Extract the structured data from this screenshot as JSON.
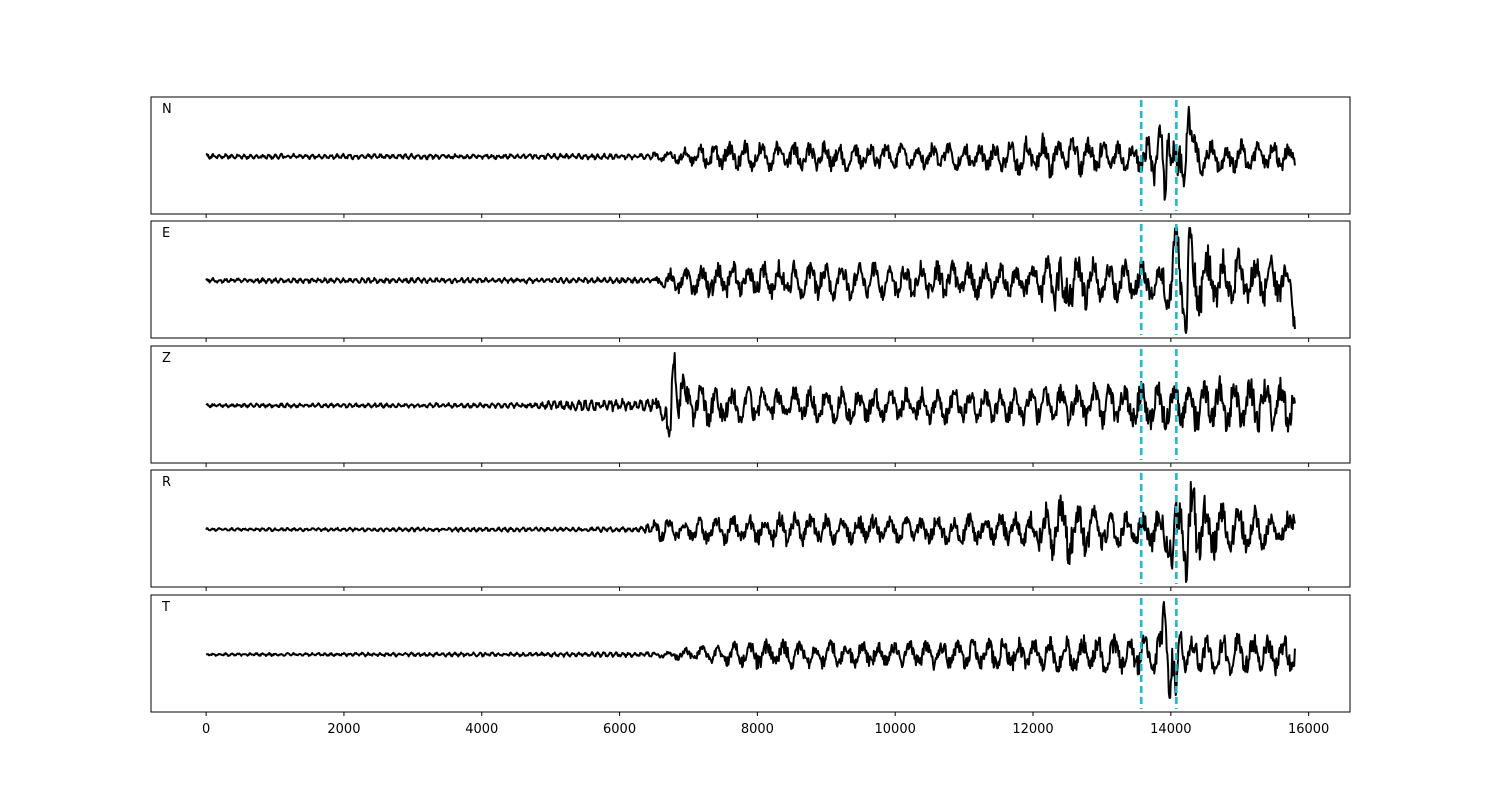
{
  "chart_data": {
    "type": "line",
    "xlim": [
      -800,
      16600
    ],
    "x_ticks": [
      0,
      2000,
      4000,
      6000,
      8000,
      10000,
      12000,
      14000,
      16000
    ],
    "x_tick_labels": [
      "0",
      "2000",
      "4000",
      "6000",
      "8000",
      "10000",
      "12000",
      "14000",
      "16000"
    ],
    "n_samples": 15800,
    "y_axis_hidden": true,
    "grid": false,
    "legend": "none",
    "trace_color": "#000000",
    "pick_color": "#17becf",
    "pick_style": "dashed",
    "picks": [
      13570,
      14080
    ],
    "panels": [
      {
        "label": "N",
        "envelope": [
          [
            0,
            0.05
          ],
          [
            6400,
            0.06
          ],
          [
            6700,
            0.12
          ],
          [
            7200,
            0.25
          ],
          [
            8000,
            0.32
          ],
          [
            10000,
            0.27
          ],
          [
            11500,
            0.3
          ],
          [
            12100,
            0.45
          ],
          [
            12700,
            0.4
          ],
          [
            13500,
            0.3
          ],
          [
            13850,
            0.65
          ],
          [
            14000,
            0.55
          ],
          [
            14150,
            0.75
          ],
          [
            14500,
            0.38
          ],
          [
            15800,
            0.28
          ]
        ],
        "spikes": [
          [
            13920,
            -0.95
          ],
          [
            13950,
            0.85
          ],
          [
            14250,
            1.0
          ],
          [
            14100,
            -0.5
          ]
        ]
      },
      {
        "label": "E",
        "envelope": [
          [
            0,
            0.05
          ],
          [
            6500,
            0.06
          ],
          [
            6800,
            0.3
          ],
          [
            7600,
            0.4
          ],
          [
            10000,
            0.38
          ],
          [
            12000,
            0.4
          ],
          [
            12200,
            0.55
          ],
          [
            12500,
            0.7
          ],
          [
            13000,
            0.45
          ],
          [
            13700,
            0.4
          ],
          [
            13900,
            0.55
          ],
          [
            14100,
            0.75
          ],
          [
            14500,
            0.7
          ],
          [
            15800,
            0.5
          ]
        ],
        "spikes": [
          [
            12450,
            -0.65
          ],
          [
            14080,
            0.7
          ],
          [
            14220,
            -0.85
          ],
          [
            14270,
            1.0
          ],
          [
            15800,
            -0.55
          ]
        ]
      },
      {
        "label": "Z",
        "envelope": [
          [
            0,
            0.04
          ],
          [
            4800,
            0.05
          ],
          [
            5000,
            0.1
          ],
          [
            6500,
            0.15
          ],
          [
            6700,
            0.45
          ],
          [
            7000,
            0.45
          ],
          [
            7500,
            0.4
          ],
          [
            10000,
            0.35
          ],
          [
            12000,
            0.4
          ],
          [
            13000,
            0.45
          ],
          [
            14000,
            0.55
          ],
          [
            14500,
            0.6
          ],
          [
            15800,
            0.55
          ]
        ],
        "spikes": [
          [
            6720,
            -0.95
          ],
          [
            6790,
            1.0
          ],
          [
            6900,
            0.5
          ]
        ]
      },
      {
        "label": "R",
        "envelope": [
          [
            0,
            0.03
          ],
          [
            6300,
            0.05
          ],
          [
            6600,
            0.25
          ],
          [
            8000,
            0.35
          ],
          [
            10000,
            0.3
          ],
          [
            12000,
            0.35
          ],
          [
            12200,
            0.6
          ],
          [
            12500,
            0.7
          ],
          [
            13000,
            0.4
          ],
          [
            13600,
            0.35
          ],
          [
            14000,
            0.65
          ],
          [
            14300,
            0.85
          ],
          [
            14700,
            0.55
          ],
          [
            15800,
            0.35
          ]
        ],
        "spikes": [
          [
            14020,
            -0.7
          ],
          [
            14150,
            0.7
          ],
          [
            14230,
            -1.0
          ],
          [
            14330,
            0.8
          ],
          [
            15800,
            0.45
          ]
        ]
      },
      {
        "label": "T",
        "envelope": [
          [
            0,
            0.03
          ],
          [
            6500,
            0.05
          ],
          [
            7000,
            0.15
          ],
          [
            8000,
            0.3
          ],
          [
            10000,
            0.28
          ],
          [
            12000,
            0.35
          ],
          [
            12400,
            0.38
          ],
          [
            13500,
            0.4
          ],
          [
            13850,
            0.6
          ],
          [
            14100,
            0.55
          ],
          [
            14300,
            0.45
          ],
          [
            15800,
            0.4
          ]
        ],
        "spikes": [
          [
            13920,
            1.0
          ],
          [
            13960,
            -0.55
          ],
          [
            14080,
            -0.85
          ],
          [
            14150,
            0.45
          ]
        ]
      }
    ]
  }
}
